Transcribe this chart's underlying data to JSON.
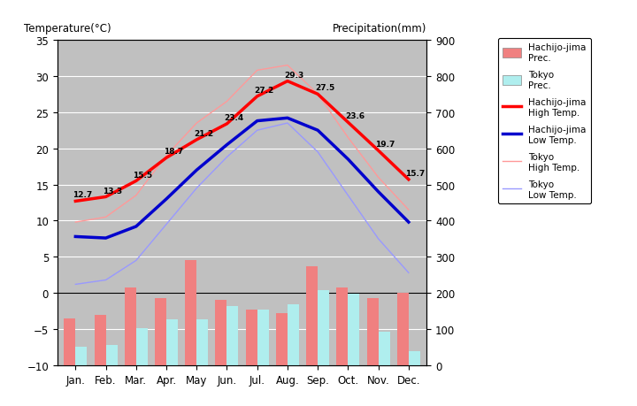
{
  "months": [
    "Jan.",
    "Feb.",
    "Mar.",
    "Apr.",
    "May",
    "Jun.",
    "Jul.",
    "Aug.",
    "Sep.",
    "Oct.",
    "Nov.",
    "Dec."
  ],
  "hachijo_high_temp": [
    12.7,
    13.3,
    15.5,
    18.7,
    21.2,
    23.4,
    27.2,
    29.3,
    27.5,
    23.6,
    19.7,
    15.7
  ],
  "hachijo_low_temp": [
    7.8,
    7.6,
    9.2,
    13.0,
    17.0,
    20.5,
    23.8,
    24.2,
    22.5,
    18.5,
    14.0,
    9.8
  ],
  "tokyo_high_temp": [
    9.8,
    10.5,
    13.5,
    19.0,
    23.5,
    26.5,
    30.8,
    31.5,
    27.5,
    21.5,
    16.0,
    11.5
  ],
  "tokyo_low_temp": [
    1.2,
    1.8,
    4.5,
    9.5,
    14.5,
    18.8,
    22.5,
    23.5,
    19.5,
    13.5,
    7.5,
    2.8
  ],
  "hachijo_prec_mm": [
    130,
    140,
    215,
    185,
    290,
    180,
    155,
    145,
    275,
    215,
    185,
    200
  ],
  "tokyo_prec_mm": [
    52,
    56,
    102,
    128,
    128,
    164,
    153,
    168,
    209,
    197,
    92,
    39
  ],
  "bar_width": 0.38,
  "hachijo_prec_bar_color": "#F08080",
  "tokyo_prec_bar_color": "#AFEEEE",
  "hachijo_high_color": "#FF0000",
  "hachijo_low_color": "#0000CD",
  "tokyo_high_color": "#FF9999",
  "tokyo_low_color": "#9999FF",
  "plot_area_color": "#C0C0C0",
  "left_ylabel": "Temperature(°C)",
  "right_ylabel": "Precipitation(mm)",
  "ylim_left": [
    -10,
    35
  ],
  "ylim_right": [
    0,
    900
  ],
  "left_yticks": [
    -10,
    -5,
    0,
    5,
    10,
    15,
    20,
    25,
    30,
    35
  ],
  "right_yticks": [
    0,
    100,
    200,
    300,
    400,
    500,
    600,
    700,
    800,
    900
  ],
  "grid_color": "#FFFFFF",
  "hachijo_high_labels": [
    12.7,
    13.3,
    15.5,
    18.7,
    21.2,
    23.4,
    27.2,
    29.3,
    27.5,
    23.6,
    19.7,
    15.7
  ],
  "legend_items": [
    {
      "label": "Hachijo-jima\nPrec.",
      "color": "#F08080",
      "type": "bar"
    },
    {
      "label": "Tokyo\nPrec.",
      "color": "#AFEEEE",
      "type": "bar"
    },
    {
      "label": "Hachijo-jima\nHigh Temp.",
      "color": "#FF0000",
      "type": "line_thick"
    },
    {
      "label": "Hachijo-jima\nLow Temp.",
      "color": "#0000CD",
      "type": "line_thick"
    },
    {
      "label": "Tokyo\nHigh Temp.",
      "color": "#FF9999",
      "type": "line_thin"
    },
    {
      "label": "Tokyo\nLow Temp.",
      "color": "#9999FF",
      "type": "line_thin"
    }
  ]
}
